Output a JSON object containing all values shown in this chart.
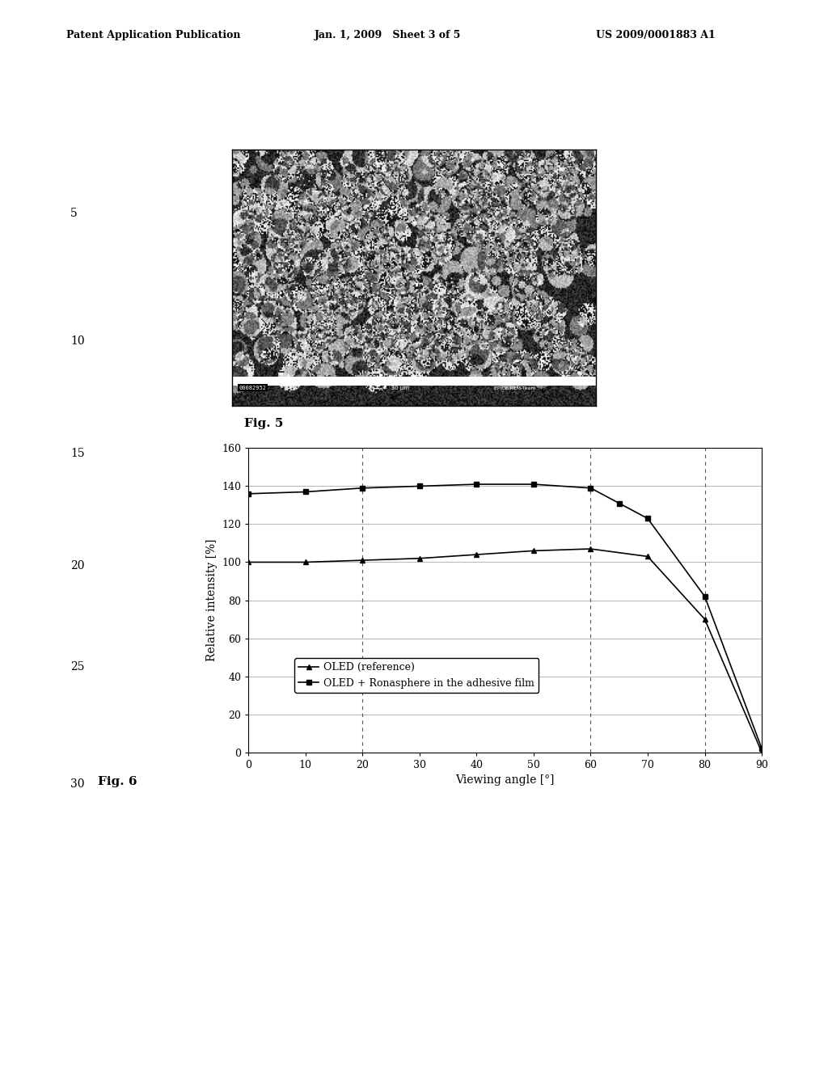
{
  "header_left": "Patent Application Publication",
  "header_center": "Jan. 1, 2009   Sheet 3 of 5",
  "header_right": "US 2009/0001883 A1",
  "fig5_label": "Fig. 5",
  "fig6_label": "Fig. 6",
  "margin_numbers": [
    "5",
    "10",
    "15",
    "20",
    "25",
    "30"
  ],
  "oled_ref": {
    "x": [
      0,
      10,
      20,
      30,
      40,
      50,
      60,
      70,
      80,
      90
    ],
    "y": [
      100,
      100,
      101,
      102,
      104,
      106,
      107,
      103,
      70,
      0
    ],
    "label": "OLED (reference)",
    "marker": "^",
    "color": "#000000"
  },
  "oled_ron": {
    "x": [
      0,
      10,
      20,
      30,
      40,
      50,
      60,
      65,
      70,
      80,
      90
    ],
    "y": [
      136,
      137,
      139,
      140,
      141,
      141,
      139,
      131,
      123,
      82,
      2
    ],
    "label": "OLED + Ronasphere in the adhesive film",
    "marker": "s",
    "color": "#000000"
  },
  "xlabel": "Viewing angle [°]",
  "ylabel": "Relative intensity [%]",
  "xlim": [
    0,
    90
  ],
  "ylim": [
    0,
    160
  ],
  "yticks": [
    0,
    20,
    40,
    60,
    80,
    100,
    120,
    140,
    160
  ],
  "xticks": [
    0,
    10,
    20,
    30,
    40,
    50,
    60,
    70,
    80,
    90
  ],
  "grid_major_color": "#aaaaaa",
  "grid_minor_color": "#cccccc",
  "background_color": "#ffffff",
  "dashed_verticals": [
    20,
    60,
    80
  ],
  "dashed_horizontals": [
    20,
    40,
    60,
    80,
    100,
    120,
    140,
    160
  ]
}
